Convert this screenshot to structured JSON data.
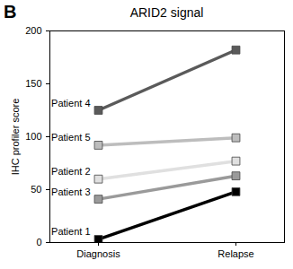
{
  "chart_data": {
    "type": "line",
    "title": "ARID2 signal",
    "annotations": [
      "B"
    ],
    "x_label": null,
    "y_label": "IHC profiler score",
    "categories": [
      "Diagnosis",
      "Relapse"
    ],
    "series": [
      {
        "name": "Patient 4",
        "color": "#5a5a5a",
        "values": [
          125,
          182
        ]
      },
      {
        "name": "Patient 5",
        "color": "#bdbdbd",
        "values": [
          92,
          99
        ]
      },
      {
        "name": "Patient 2",
        "color": "#e0e0e0",
        "values": [
          60,
          77
        ]
      },
      {
        "name": "Patient 3",
        "color": "#9a9a9a",
        "values": [
          41,
          63
        ]
      },
      {
        "name": "Patient 1",
        "color": "#000000",
        "values": [
          3,
          48
        ]
      }
    ],
    "ylim": [
      0,
      200
    ],
    "yticks": [
      0,
      50,
      100,
      150,
      200
    ],
    "marker": "square",
    "grid": false
  }
}
